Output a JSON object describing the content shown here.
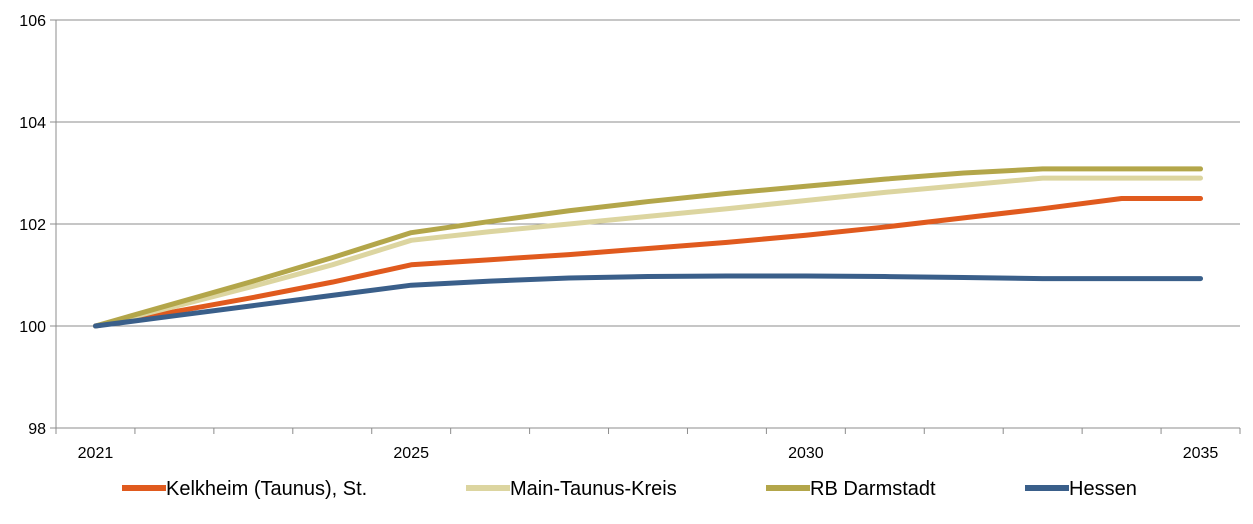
{
  "chart_data": {
    "type": "line",
    "title": "",
    "xlabel": "",
    "ylabel": "",
    "x": [
      2021,
      2022,
      2023,
      2024,
      2025,
      2026,
      2027,
      2028,
      2029,
      2030,
      2031,
      2032,
      2033,
      2034,
      2035
    ],
    "x_tick_labels": [
      "2021",
      "2025",
      "2030",
      "2035"
    ],
    "x_tick_values": [
      2021,
      2025,
      2030,
      2035
    ],
    "y_tick_labels": [
      "98",
      "100",
      "102",
      "104",
      "106"
    ],
    "y_tick_values": [
      98,
      100,
      102,
      104,
      106
    ],
    "xlim": [
      2020.5,
      2035.5
    ],
    "ylim": [
      98,
      106
    ],
    "grid": "horizontal",
    "legend_position": "bottom",
    "series": [
      {
        "name": "Kelkheim (Taunus), St.",
        "color": "#e05a1e",
        "values": [
          100.0,
          100.28,
          100.56,
          100.86,
          101.2,
          101.3,
          101.4,
          101.52,
          101.64,
          101.78,
          101.94,
          102.12,
          102.3,
          102.5,
          102.5
        ]
      },
      {
        "name": "Main-Taunus-Kreis",
        "color": "#dcd5a0",
        "values": [
          100.0,
          100.38,
          100.78,
          101.2,
          101.68,
          101.85,
          102.0,
          102.15,
          102.3,
          102.46,
          102.62,
          102.76,
          102.9,
          102.9,
          102.9
        ]
      },
      {
        "name": "RB Darmstadt",
        "color": "#b3a64a",
        "values": [
          100.0,
          100.44,
          100.88,
          101.34,
          101.83,
          102.05,
          102.26,
          102.44,
          102.6,
          102.74,
          102.88,
          103.0,
          103.08,
          103.08,
          103.08
        ]
      },
      {
        "name": "Hessen",
        "color": "#3a5f8a",
        "values": [
          100.0,
          100.2,
          100.4,
          100.6,
          100.8,
          100.88,
          100.94,
          100.97,
          100.98,
          100.98,
          100.97,
          100.95,
          100.93,
          100.93,
          100.93
        ]
      }
    ]
  }
}
